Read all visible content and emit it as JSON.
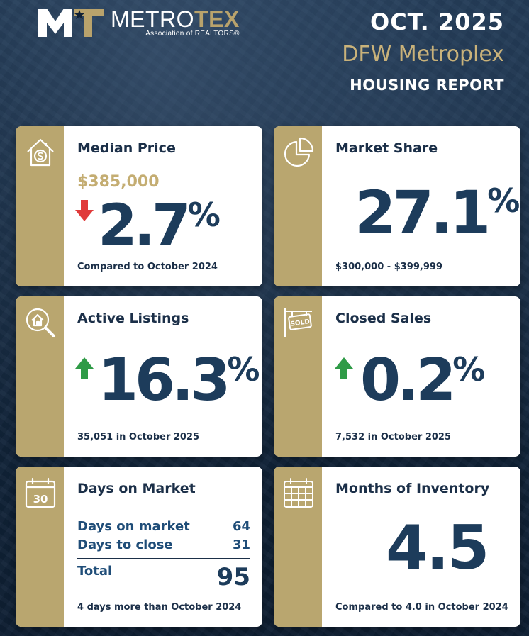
{
  "header": {
    "logo_word_a": "METRO",
    "logo_word_b": "TEX",
    "logo_sub": "Association of REALTORS®",
    "date": "OCT. 2025",
    "region": "DFW Metroplex",
    "report": "HOUSING REPORT"
  },
  "colors": {
    "navy": "#1d3c5b",
    "gold": "#b9a66f",
    "down_arrow": "#e03a3a",
    "up_arrow": "#2f9b47"
  },
  "cards": {
    "median_price": {
      "icon": "house-dollar-icon",
      "title": "Median Price",
      "price": "$385,000",
      "trend": "down",
      "change": "2.7",
      "pct": "%",
      "footer": "Compared to October 2024"
    },
    "market_share": {
      "icon": "pie-chart-icon",
      "title": "Market Share",
      "value": "27.1",
      "pct": "%",
      "footer": "$300,000 - $399,999"
    },
    "active_listings": {
      "icon": "house-search-icon",
      "title": "Active Listings",
      "trend": "up",
      "change": "16.3",
      "pct": "%",
      "footer": "35,051 in October 2025"
    },
    "closed_sales": {
      "icon": "sold-sign-icon",
      "title": "Closed Sales",
      "trend": "up",
      "change": "0.2",
      "pct": "%",
      "footer": "7,532 in October 2025"
    },
    "days_on_market": {
      "icon": "calendar-30-icon",
      "icon_text": "30",
      "title": "Days on Market",
      "rows": [
        {
          "label": "Days on market",
          "value": "64"
        },
        {
          "label": "Days to close",
          "value": "31"
        }
      ],
      "total_label": "Total",
      "total_value": "95",
      "footer": "4 days more than October 2024"
    },
    "months_inventory": {
      "icon": "calendar-grid-icon",
      "title": "Months of Inventory",
      "value": "4.5",
      "footer": "Compared to 4.0 in October 2024"
    }
  }
}
